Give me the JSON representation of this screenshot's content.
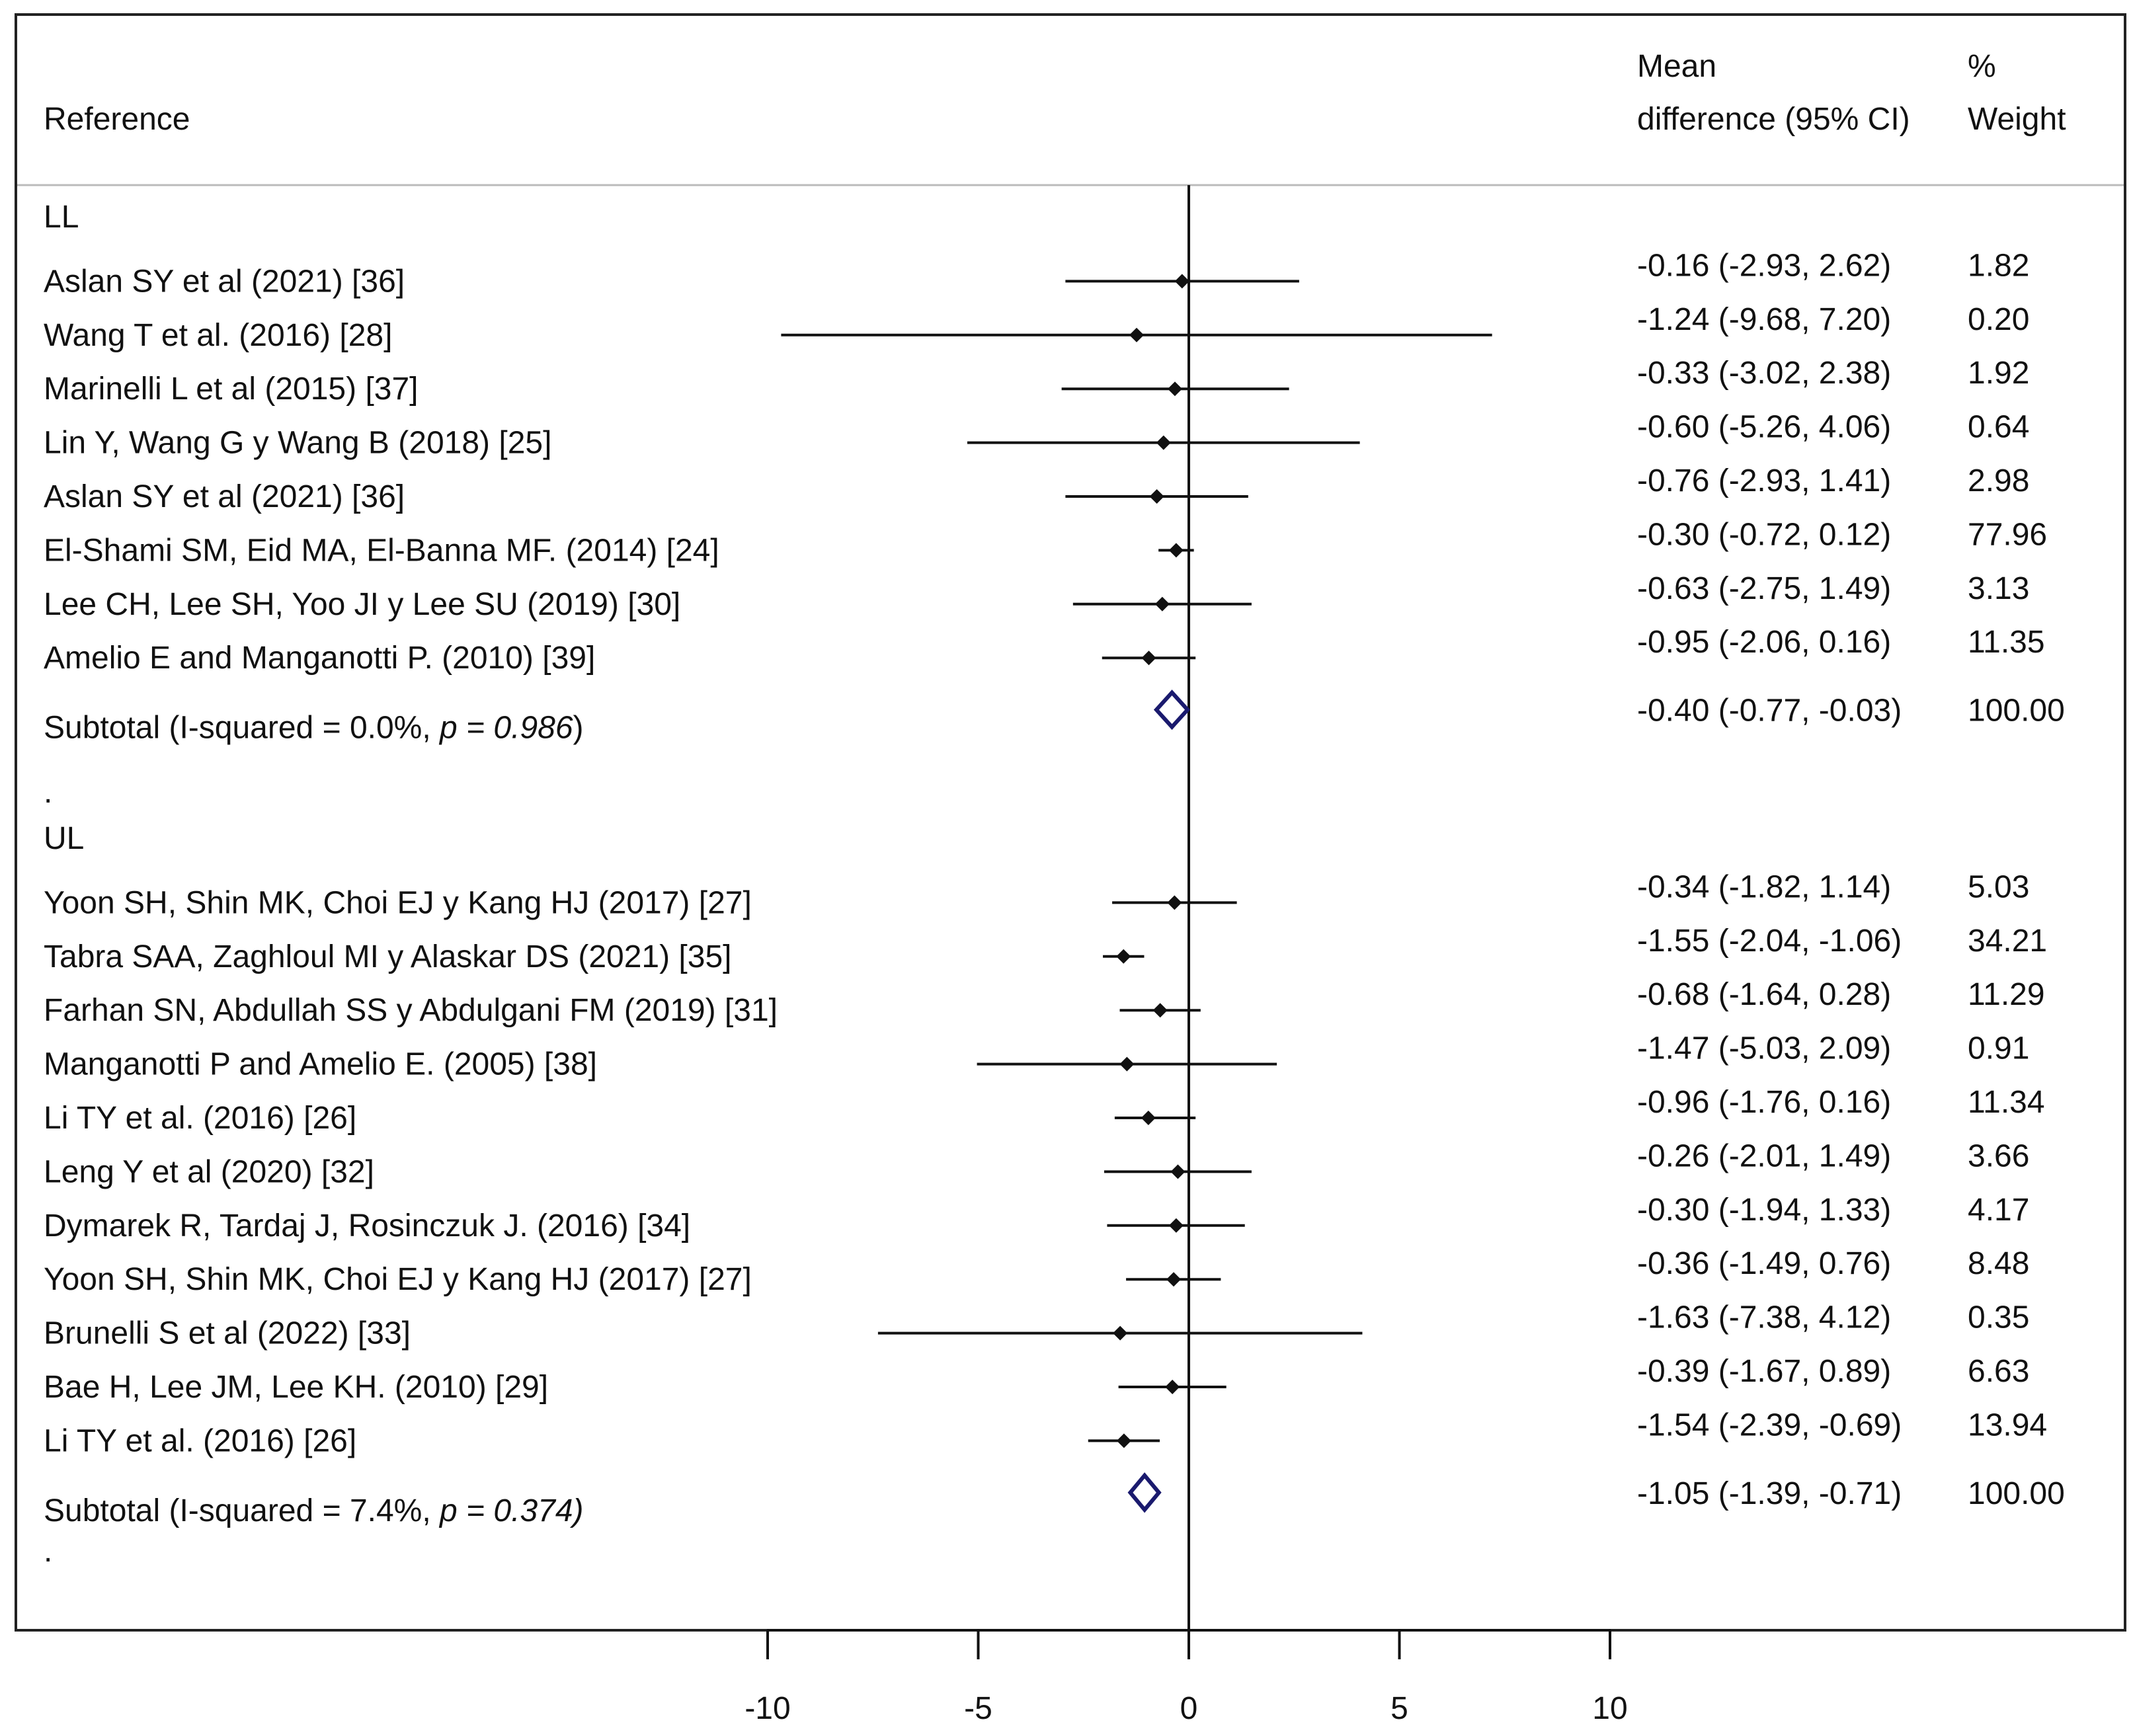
{
  "chart_data": {
    "type": "forest",
    "headers": {
      "reference": "Reference",
      "md_line1": "Mean",
      "md_line2": "difference (95% CI)",
      "weight_line1": "%",
      "weight_line2": "Weight"
    },
    "x_axis": {
      "ticks": [
        -10,
        -5,
        0,
        5,
        10
      ],
      "tick_labels": [
        "-10",
        "-5",
        "0",
        "5",
        "10"
      ],
      "range": [
        -10,
        10
      ]
    },
    "groups": [
      {
        "label": "LL",
        "studies": [
          {
            "name": "Aslan SY et al (2021) [36]",
            "mean": -0.16,
            "lo": -2.93,
            "hi": 2.62,
            "ci_text": "-0.16 (-2.93, 2.62)",
            "weight": "1.82"
          },
          {
            "name": "Wang T et al. (2016) [28]",
            "mean": -1.24,
            "lo": -9.68,
            "hi": 7.2,
            "ci_text": "-1.24 (-9.68, 7.20)",
            "weight": "0.20"
          },
          {
            "name": "Marinelli L et al (2015) [37]",
            "mean": -0.33,
            "lo": -3.02,
            "hi": 2.38,
            "ci_text": "-0.33 (-3.02, 2.38)",
            "weight": "1.92"
          },
          {
            "name": "Lin Y, Wang G y Wang B (2018) [25]",
            "mean": -0.6,
            "lo": -5.26,
            "hi": 4.06,
            "ci_text": "-0.60 (-5.26, 4.06)",
            "weight": "0.64"
          },
          {
            "name": "Aslan SY et al (2021) [36]",
            "mean": -0.76,
            "lo": -2.93,
            "hi": 1.41,
            "ci_text": "-0.76 (-2.93, 1.41)",
            "weight": "2.98"
          },
          {
            "name": "El-Shami SM, Eid MA, El-Banna MF. (2014) [24]",
            "mean": -0.3,
            "lo": -0.72,
            "hi": 0.12,
            "ci_text": "-0.30 (-0.72, 0.12)",
            "weight": "77.96"
          },
          {
            "name": "Lee CH, Lee SH, Yoo JI y Lee SU (2019) [30]",
            "mean": -0.63,
            "lo": -2.75,
            "hi": 1.49,
            "ci_text": "-0.63 (-2.75, 1.49)",
            "weight": "3.13"
          },
          {
            "name": "Amelio E and  Manganotti  P.  (2010) [39]",
            "mean": -0.95,
            "lo": -2.06,
            "hi": 0.16,
            "ci_text": "-0.95 (-2.06, 0.16)",
            "weight": "11.35"
          }
        ],
        "subtotal": {
          "prefix": "Subtotal  (I-squared = 0.0%, ",
          "p_label": "p = 0.986",
          "suffix": ")",
          "mean": -0.4,
          "lo": -0.77,
          "hi": -0.03,
          "ci_text": "-0.40 (-0.77, -0.03)",
          "weight": "100.00"
        }
      },
      {
        "label": "UL",
        "studies": [
          {
            "name": "Yoon SH, Shin MK, Choi EJ y Kang HJ (2017) [27]",
            "mean": -0.34,
            "lo": -1.82,
            "hi": 1.14,
            "ci_text": "-0.34 (-1.82, 1.14)",
            "weight": "5.03"
          },
          {
            "name": "Tabra SAA, Zaghloul MI y Alaskar DS (2021) [35]",
            "mean": -1.55,
            "lo": -2.04,
            "hi": -1.06,
            "ci_text": "-1.55 (-2.04, -1.06)",
            "weight": "34.21"
          },
          {
            "name": "Farhan SN, Abdullah SS y Abdulgani FM (2019) [31]",
            "mean": -0.68,
            "lo": -1.64,
            "hi": 0.28,
            "ci_text": "-0.68 (-1.64, 0.28)",
            "weight": "11.29"
          },
          {
            "name": "Manganotti P and Amelio E. (2005) [38]",
            "mean": -1.47,
            "lo": -5.03,
            "hi": 2.09,
            "ci_text": "-1.47 (-5.03, 2.09)",
            "weight": "0.91"
          },
          {
            "name": "Li TY et al. (2016) [26]",
            "mean": -0.96,
            "lo": -1.76,
            "hi": 0.16,
            "ci_text": "-0.96 (-1.76, 0.16)",
            "weight": "11.34"
          },
          {
            "name": "Leng Y et al (2020) [32]",
            "mean": -0.26,
            "lo": -2.01,
            "hi": 1.49,
            "ci_text": "-0.26 (-2.01, 1.49)",
            "weight": "3.66"
          },
          {
            "name": "Dymarek R, Tardaj J, Rosinczuk J. (2016) [34]",
            "mean": -0.3,
            "lo": -1.94,
            "hi": 1.33,
            "ci_text": "-0.30 (-1.94, 1.33)",
            "weight": "4.17"
          },
          {
            "name": "Yoon SH, Shin MK, Choi EJ y Kang HJ (2017) [27]",
            "mean": -0.36,
            "lo": -1.49,
            "hi": 0.76,
            "ci_text": "-0.36 (-1.49, 0.76)",
            "weight": "8.48"
          },
          {
            "name": "Brunelli S et al (2022) [33]",
            "mean": -1.63,
            "lo": -7.38,
            "hi": 4.12,
            "ci_text": "-1.63 (-7.38, 4.12)",
            "weight": "0.35"
          },
          {
            "name": "Bae H, Lee JM, Lee KH. (2010) [29]",
            "mean": -0.39,
            "lo": -1.67,
            "hi": 0.89,
            "ci_text": "-0.39 (-1.67, 0.89)",
            "weight": "6.63"
          },
          {
            "name": "Li TY et al. (2016) [26]",
            "mean": -1.54,
            "lo": -2.39,
            "hi": -0.69,
            "ci_text": "-1.54 (-2.39, -0.69)",
            "weight": "13.94"
          }
        ],
        "subtotal": {
          "prefix": "Subtotal  (I-squared = 7.4%, ",
          "p_label": "p = 0.374)",
          "suffix": "",
          "mean": -1.05,
          "lo": -1.39,
          "hi": -0.71,
          "ci_text": "-1.05 (-1.39, -0.71)",
          "weight": "100.00"
        }
      }
    ],
    "separator": ".",
    "colors": {
      "text": "#111111",
      "line": "#111111",
      "diamond": "#1a1a6e",
      "frame": "#222222",
      "header_rule": "#bbbbbb"
    }
  }
}
